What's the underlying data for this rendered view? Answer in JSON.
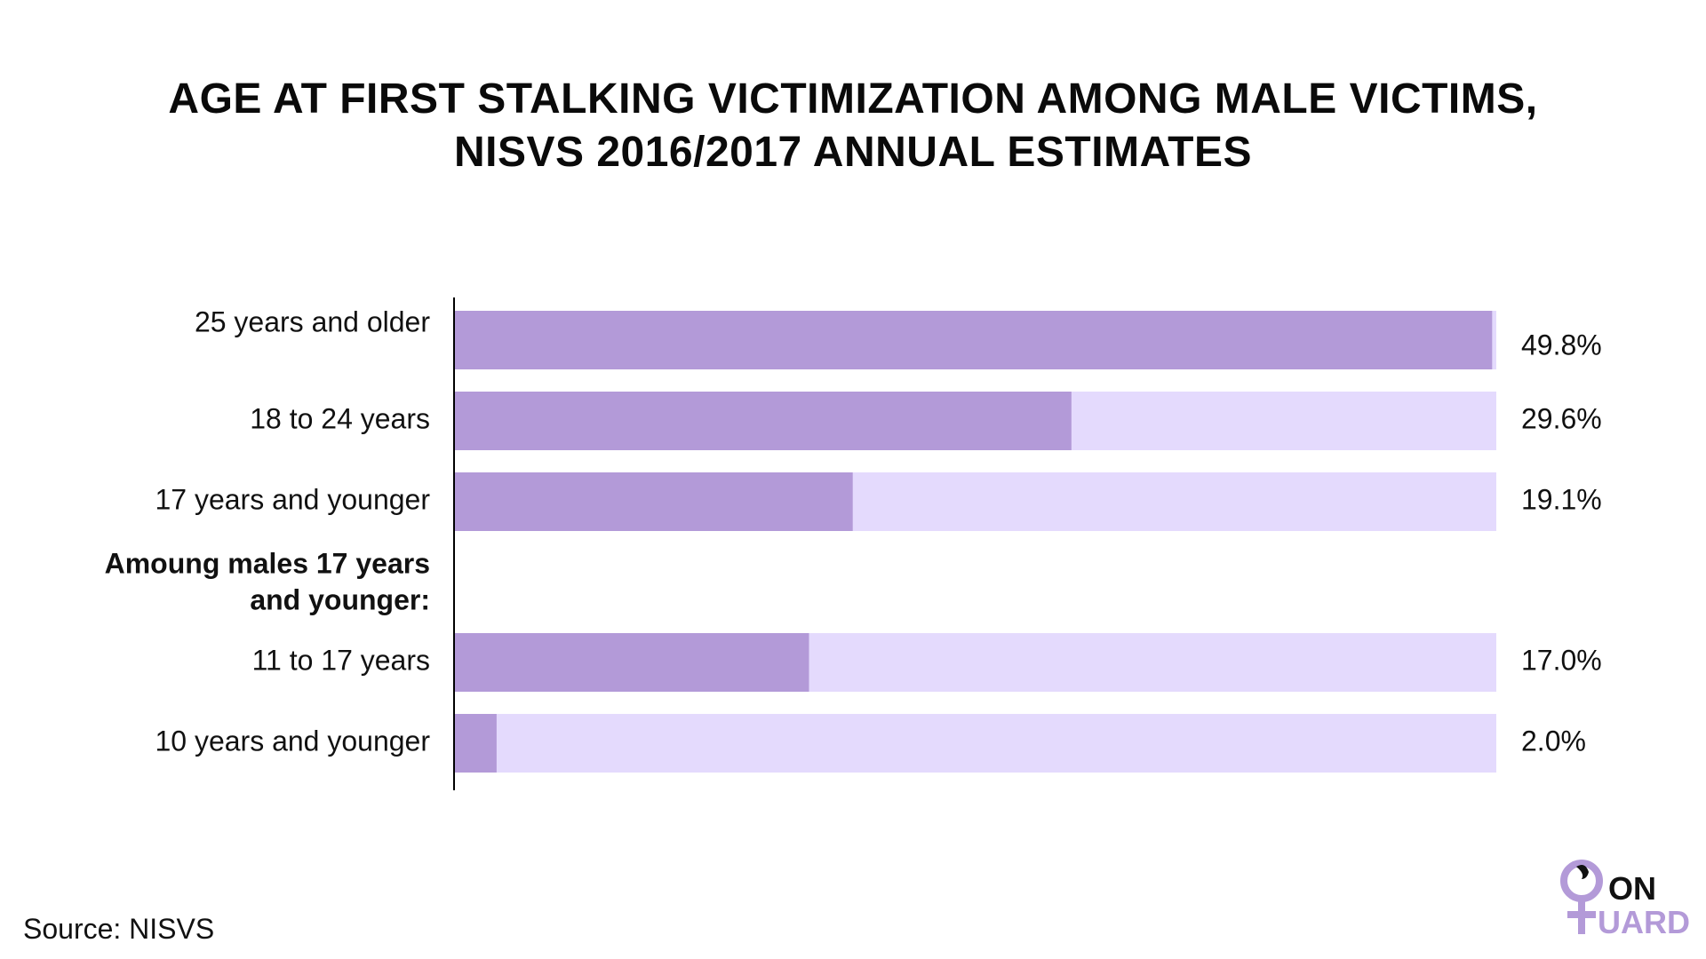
{
  "title_line1": "AGE AT FIRST STALKING VICTIMIZATION AMONG MALE VICTIMS,",
  "title_line2": "NISVS 2016/2017 ANNUAL ESTIMATES",
  "source": "Source: NISVS",
  "logo": {
    "on": "ON",
    "guard": "UARD"
  },
  "colors": {
    "bar": "#b39ad8",
    "track": "#e4dafd",
    "axis": "#000000"
  },
  "chart_data": {
    "type": "bar",
    "orientation": "horizontal",
    "xlim": [
      0,
      50
    ],
    "grid": false,
    "categories": [
      "25 years and older",
      "18 to 24 years",
      "17 years and younger",
      "11 to 17 years",
      "10 years and younger"
    ],
    "values": [
      49.8,
      29.6,
      19.1,
      17.0,
      2.0
    ],
    "value_labels": [
      "49.8%",
      "29.6%",
      "19.1%",
      "17.0%",
      "2.0%"
    ],
    "group_heading": "Amoung males 17 years and younger:",
    "group_heading_lines": [
      "Amoung males 17 years",
      "and younger:"
    ]
  }
}
